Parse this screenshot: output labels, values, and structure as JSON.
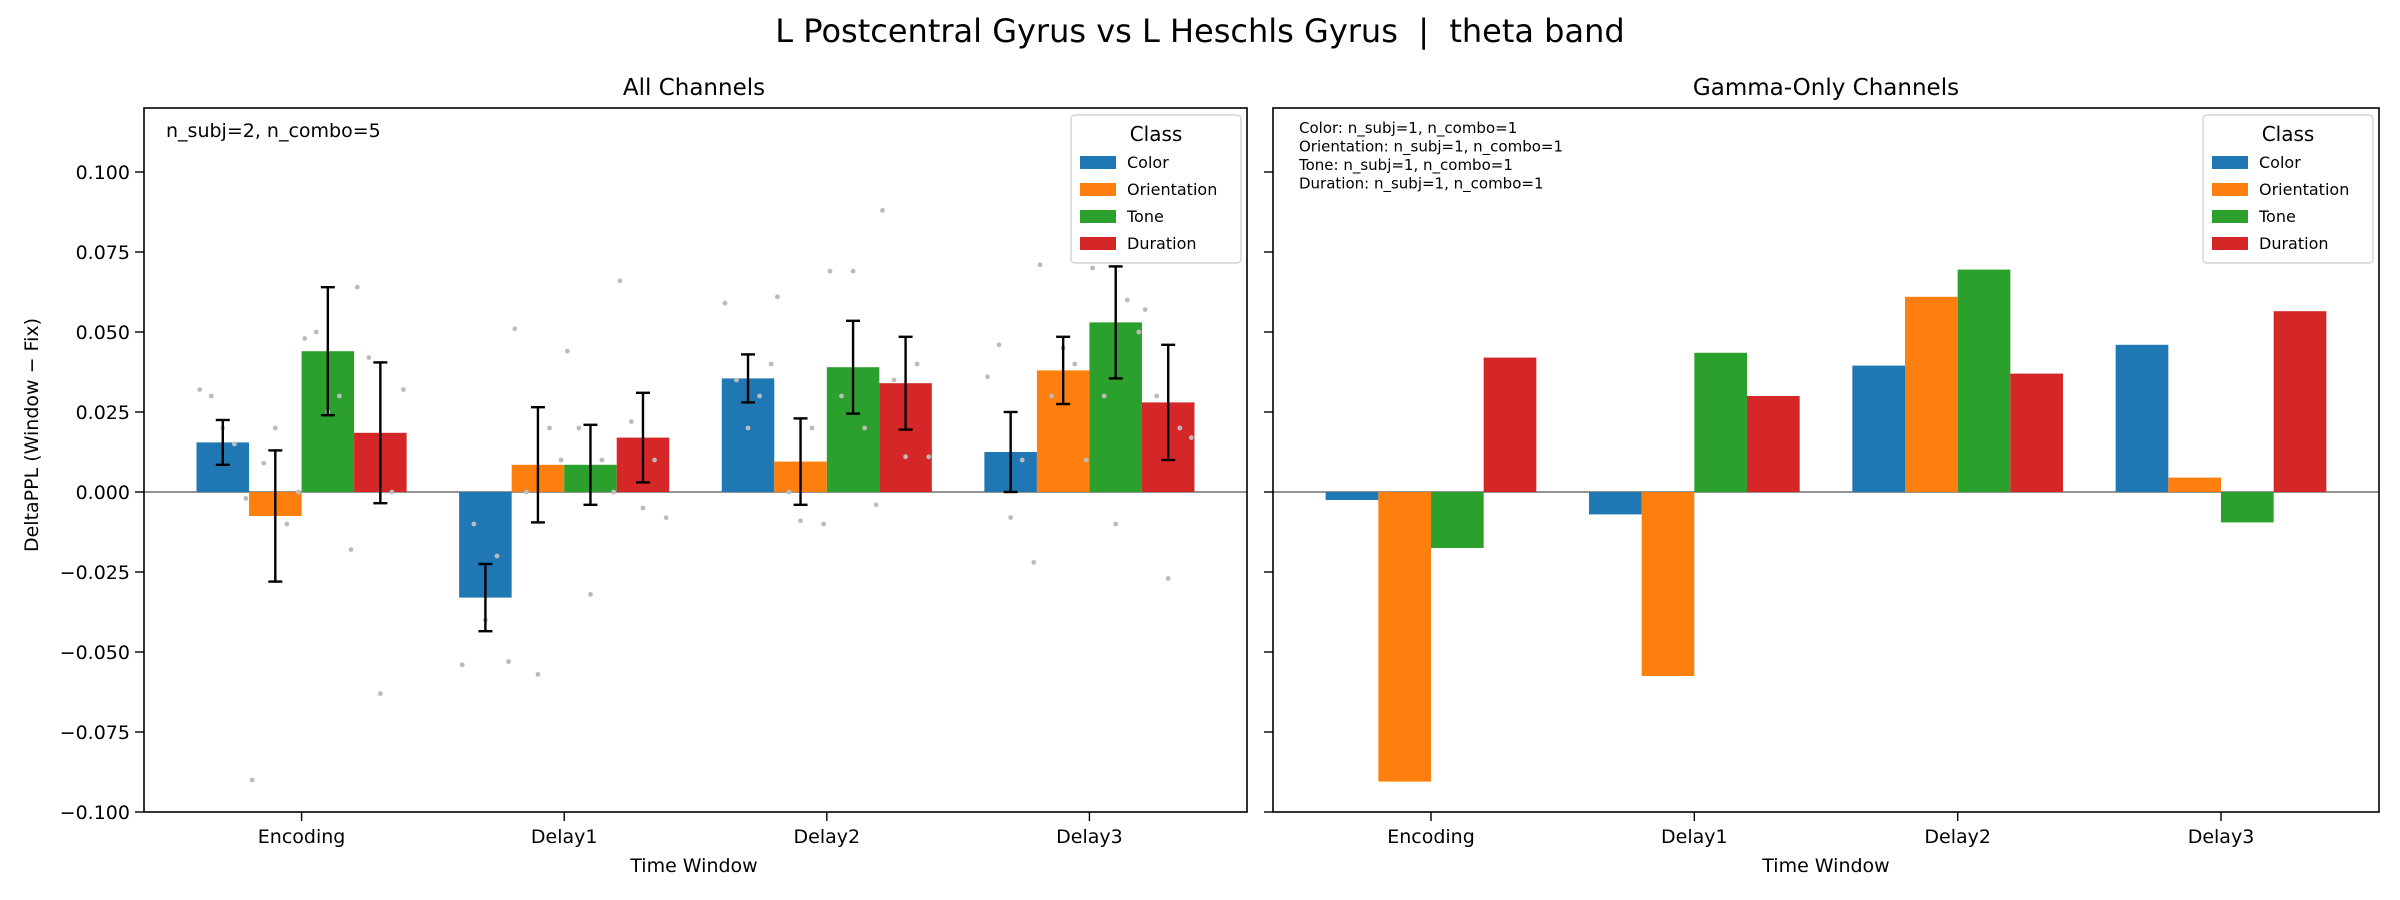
{
  "figure": {
    "title": "L Postcentral Gyrus vs L Heschls Gyrus  |  theta band",
    "ylabel": "DeltaPPL (Window − Fix)"
  },
  "colors": {
    "Color": "#1f77b4",
    "Orientation": "#ff7f0e",
    "Tone": "#2ca02c",
    "Duration": "#d62728",
    "points": "#bbbbbb",
    "errorbar": "#000000"
  },
  "chart_data": [
    {
      "type": "bar",
      "title": "All Channels",
      "xlabel": "Time Window",
      "ylabel": "DeltaPPL (Window − Fix)",
      "ylim": [
        -0.1,
        0.12
      ],
      "yticks": [
        -0.1,
        -0.075,
        -0.05,
        -0.025,
        0.0,
        0.025,
        0.05,
        0.075,
        0.1
      ],
      "ytick_labels": [
        "−0.100",
        "−0.075",
        "−0.050",
        "−0.025",
        "0.000",
        "0.025",
        "0.050",
        "0.075",
        "0.100"
      ],
      "categories": [
        "Encoding",
        "Delay1",
        "Delay2",
        "Delay3"
      ],
      "annotation": [
        "n_subj=2, n_combo=5"
      ],
      "legend": {
        "title": "Class",
        "placement": "top-right"
      },
      "series": [
        {
          "name": "Color",
          "values": [
            0.0155,
            -0.033,
            0.0355,
            0.0125
          ],
          "errors": [
            0.007,
            0.0105,
            0.0075,
            0.0125
          ],
          "points": [
            [
              0.032,
              0.02,
              -0.002,
              0.03,
              0.015
            ],
            [
              -0.054,
              -0.04,
              -0.053,
              -0.01,
              -0.02
            ],
            [
              0.059,
              0.02,
              0.04,
              0.035,
              0.03
            ],
            [
              0.036,
              -0.008,
              -0.022,
              0.046,
              0.01
            ]
          ]
        },
        {
          "name": "Orientation",
          "values": [
            -0.0075,
            0.0085,
            0.0095,
            0.038
          ],
          "errors": [
            0.0205,
            0.018,
            0.0135,
            0.0105
          ],
          "points": [
            [
              -0.09,
              0.02,
              0.0,
              0.009,
              -0.01
            ],
            [
              0.051,
              -0.057,
              0.01,
              0.0,
              0.02
            ],
            [
              0.061,
              -0.009,
              -0.01,
              0.0,
              0.02
            ],
            [
              0.071,
              0.045,
              0.01,
              0.03,
              0.04
            ]
          ]
        },
        {
          "name": "Tone",
          "values": [
            0.044,
            0.0085,
            0.039,
            0.053
          ],
          "errors": [
            0.02,
            0.0125,
            0.0145,
            0.0175
          ],
          "points": [
            [
              0.048,
              0.025,
              -0.018,
              0.05,
              0.03
            ],
            [
              0.044,
              -0.032,
              0.0,
              0.02,
              0.01
            ],
            [
              0.069,
              0.069,
              -0.004,
              0.03,
              0.02
            ],
            [
              0.07,
              -0.01,
              0.05,
              0.03,
              0.06
            ]
          ]
        },
        {
          "name": "Duration",
          "values": [
            0.0185,
            0.017,
            0.034,
            0.028
          ],
          "errors": [
            0.022,
            0.014,
            0.0145,
            0.018
          ],
          "points": [
            [
              0.064,
              -0.063,
              0.032,
              0.042,
              0.0
            ],
            [
              0.066,
              -0.005,
              -0.008,
              0.022,
              0.01
            ],
            [
              0.088,
              0.011,
              0.011,
              0.035,
              0.04
            ],
            [
              0.057,
              -0.027,
              0.017,
              0.03,
              0.02
            ]
          ]
        }
      ]
    },
    {
      "type": "bar",
      "title": "Gamma-Only Channels",
      "xlabel": "Time Window",
      "ylim": [
        -0.1,
        0.12
      ],
      "categories": [
        "Encoding",
        "Delay1",
        "Delay2",
        "Delay3"
      ],
      "annotation": [
        "Color: n_subj=1, n_combo=1",
        "Orientation: n_subj=1, n_combo=1",
        "Tone: n_subj=1, n_combo=1",
        "Duration: n_subj=1, n_combo=1"
      ],
      "legend": {
        "title": "Class",
        "placement": "top-right"
      },
      "series": [
        {
          "name": "Color",
          "values": [
            -0.0025,
            -0.007,
            0.0395,
            0.046
          ]
        },
        {
          "name": "Orientation",
          "values": [
            -0.0905,
            -0.0575,
            0.061,
            0.0045
          ]
        },
        {
          "name": "Tone",
          "values": [
            -0.0175,
            0.0435,
            0.0695,
            -0.0095
          ]
        },
        {
          "name": "Duration",
          "values": [
            0.042,
            0.03,
            0.037,
            0.0565
          ]
        }
      ]
    }
  ]
}
